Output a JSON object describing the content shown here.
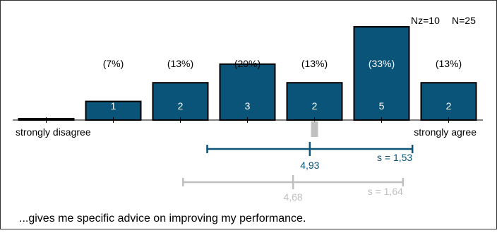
{
  "chart_data": {
    "type": "bar",
    "header": {
      "nz_label": "Nz=10",
      "n_label": "N=25"
    },
    "categories": [
      "strongly disagree",
      "",
      "",
      "",
      "",
      "",
      "strongly agree"
    ],
    "values": [
      0,
      1,
      2,
      3,
      2,
      5,
      2
    ],
    "count_labels": [
      "",
      "1",
      "2",
      "3",
      "2",
      "5",
      "2"
    ],
    "percent_labels": [
      "",
      "(7%)",
      "(13%)",
      "(20%)",
      "(13%)",
      "(33%)",
      "(13%)"
    ],
    "ylim": [
      0,
      5
    ],
    "median_category_index": 4,
    "stats": [
      {
        "mean": 4.93,
        "sd": 1.53,
        "mean_label": "4,93",
        "sd_label": "s = 1,53",
        "color": "#0b5479"
      },
      {
        "mean": 4.68,
        "sd": 1.64,
        "mean_label": "4,68",
        "sd_label": "s = 1,64",
        "color": "#bfbfbf"
      }
    ],
    "question": "...gives me specific advice on improving my performance.",
    "colors": {
      "bar": "#0b5479",
      "bar_border": "#000000",
      "median_marker": "#c0c0c0"
    }
  }
}
